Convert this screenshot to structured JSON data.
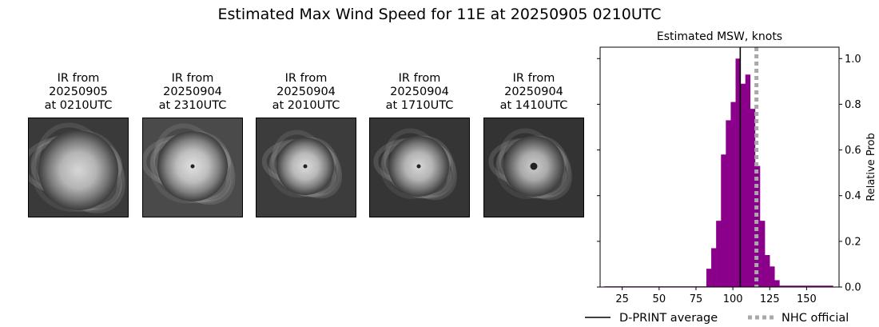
{
  "suptitle": "Estimated Max Wind Speed for 11E at 20250905 0210UTC",
  "panels": [
    {
      "line1": "IR from",
      "line2": "20250905",
      "line3": "at 0210UTC"
    },
    {
      "line1": "IR from",
      "line2": "20250904",
      "line3": "at 2310UTC"
    },
    {
      "line1": "IR from",
      "line2": "20250904",
      "line3": "at 2010UTC"
    },
    {
      "line1": "IR from",
      "line2": "20250904",
      "line3": "at 1710UTC"
    },
    {
      "line1": "IR from",
      "line2": "20250904",
      "line3": "at 1410UTC"
    }
  ],
  "chart_data": {
    "type": "bar",
    "title": "Estimated MSW, knots",
    "xlabel": "",
    "ylabel": "Relative Prob",
    "xlim": [
      10,
      172
    ],
    "ylim": [
      0,
      1.05
    ],
    "xticks": [
      25,
      50,
      75,
      100,
      125,
      150
    ],
    "yticks": [
      0.0,
      0.2,
      0.4,
      0.6,
      0.8,
      1.0
    ],
    "yaxis_side": "right",
    "grid": false,
    "bar_color": "#8b008b",
    "bin_width": 3.3,
    "bins": [
      {
        "x": 14.4,
        "y": 0.003
      },
      {
        "x": 17.7,
        "y": 0.003
      },
      {
        "x": 21.0,
        "y": 0.003
      },
      {
        "x": 24.3,
        "y": 0.003
      },
      {
        "x": 27.6,
        "y": 0.003
      },
      {
        "x": 30.9,
        "y": 0.003
      },
      {
        "x": 34.2,
        "y": 0.003
      },
      {
        "x": 37.5,
        "y": 0.003
      },
      {
        "x": 40.8,
        "y": 0.003
      },
      {
        "x": 44.1,
        "y": 0.003
      },
      {
        "x": 47.4,
        "y": 0.003
      },
      {
        "x": 50.7,
        "y": 0.003
      },
      {
        "x": 54.0,
        "y": 0.003
      },
      {
        "x": 57.3,
        "y": 0.003
      },
      {
        "x": 60.6,
        "y": 0.003
      },
      {
        "x": 63.9,
        "y": 0.003
      },
      {
        "x": 67.2,
        "y": 0.003
      },
      {
        "x": 70.5,
        "y": 0.003
      },
      {
        "x": 73.8,
        "y": 0.003
      },
      {
        "x": 77.1,
        "y": 0.003
      },
      {
        "x": 80.4,
        "y": 0.003
      },
      {
        "x": 83.7,
        "y": 0.08
      },
      {
        "x": 87.0,
        "y": 0.17
      },
      {
        "x": 90.3,
        "y": 0.29
      },
      {
        "x": 93.6,
        "y": 0.58
      },
      {
        "x": 96.9,
        "y": 0.73
      },
      {
        "x": 100.2,
        "y": 0.81
      },
      {
        "x": 103.5,
        "y": 1.0
      },
      {
        "x": 106.8,
        "y": 0.89
      },
      {
        "x": 110.1,
        "y": 0.93
      },
      {
        "x": 113.4,
        "y": 0.78
      },
      {
        "x": 116.7,
        "y": 0.53
      },
      {
        "x": 120.0,
        "y": 0.29
      },
      {
        "x": 123.3,
        "y": 0.14
      },
      {
        "x": 126.6,
        "y": 0.09
      },
      {
        "x": 129.9,
        "y": 0.03
      },
      {
        "x": 133.2,
        "y": 0.006
      },
      {
        "x": 136.5,
        "y": 0.006
      },
      {
        "x": 139.8,
        "y": 0.006
      },
      {
        "x": 143.1,
        "y": 0.006
      },
      {
        "x": 146.4,
        "y": 0.006
      },
      {
        "x": 149.7,
        "y": 0.006
      },
      {
        "x": 153.0,
        "y": 0.006
      },
      {
        "x": 156.3,
        "y": 0.006
      },
      {
        "x": 159.6,
        "y": 0.006
      },
      {
        "x": 162.9,
        "y": 0.006
      },
      {
        "x": 166.2,
        "y": 0.006
      }
    ],
    "lines": [
      {
        "name": "D-PRINT average",
        "x": 105,
        "color": "#000000",
        "style": "solid"
      },
      {
        "name": "NHC official",
        "x": 116,
        "color": "#a9a9a9",
        "style": "dotted"
      }
    ],
    "legend_placement": "bottom"
  }
}
